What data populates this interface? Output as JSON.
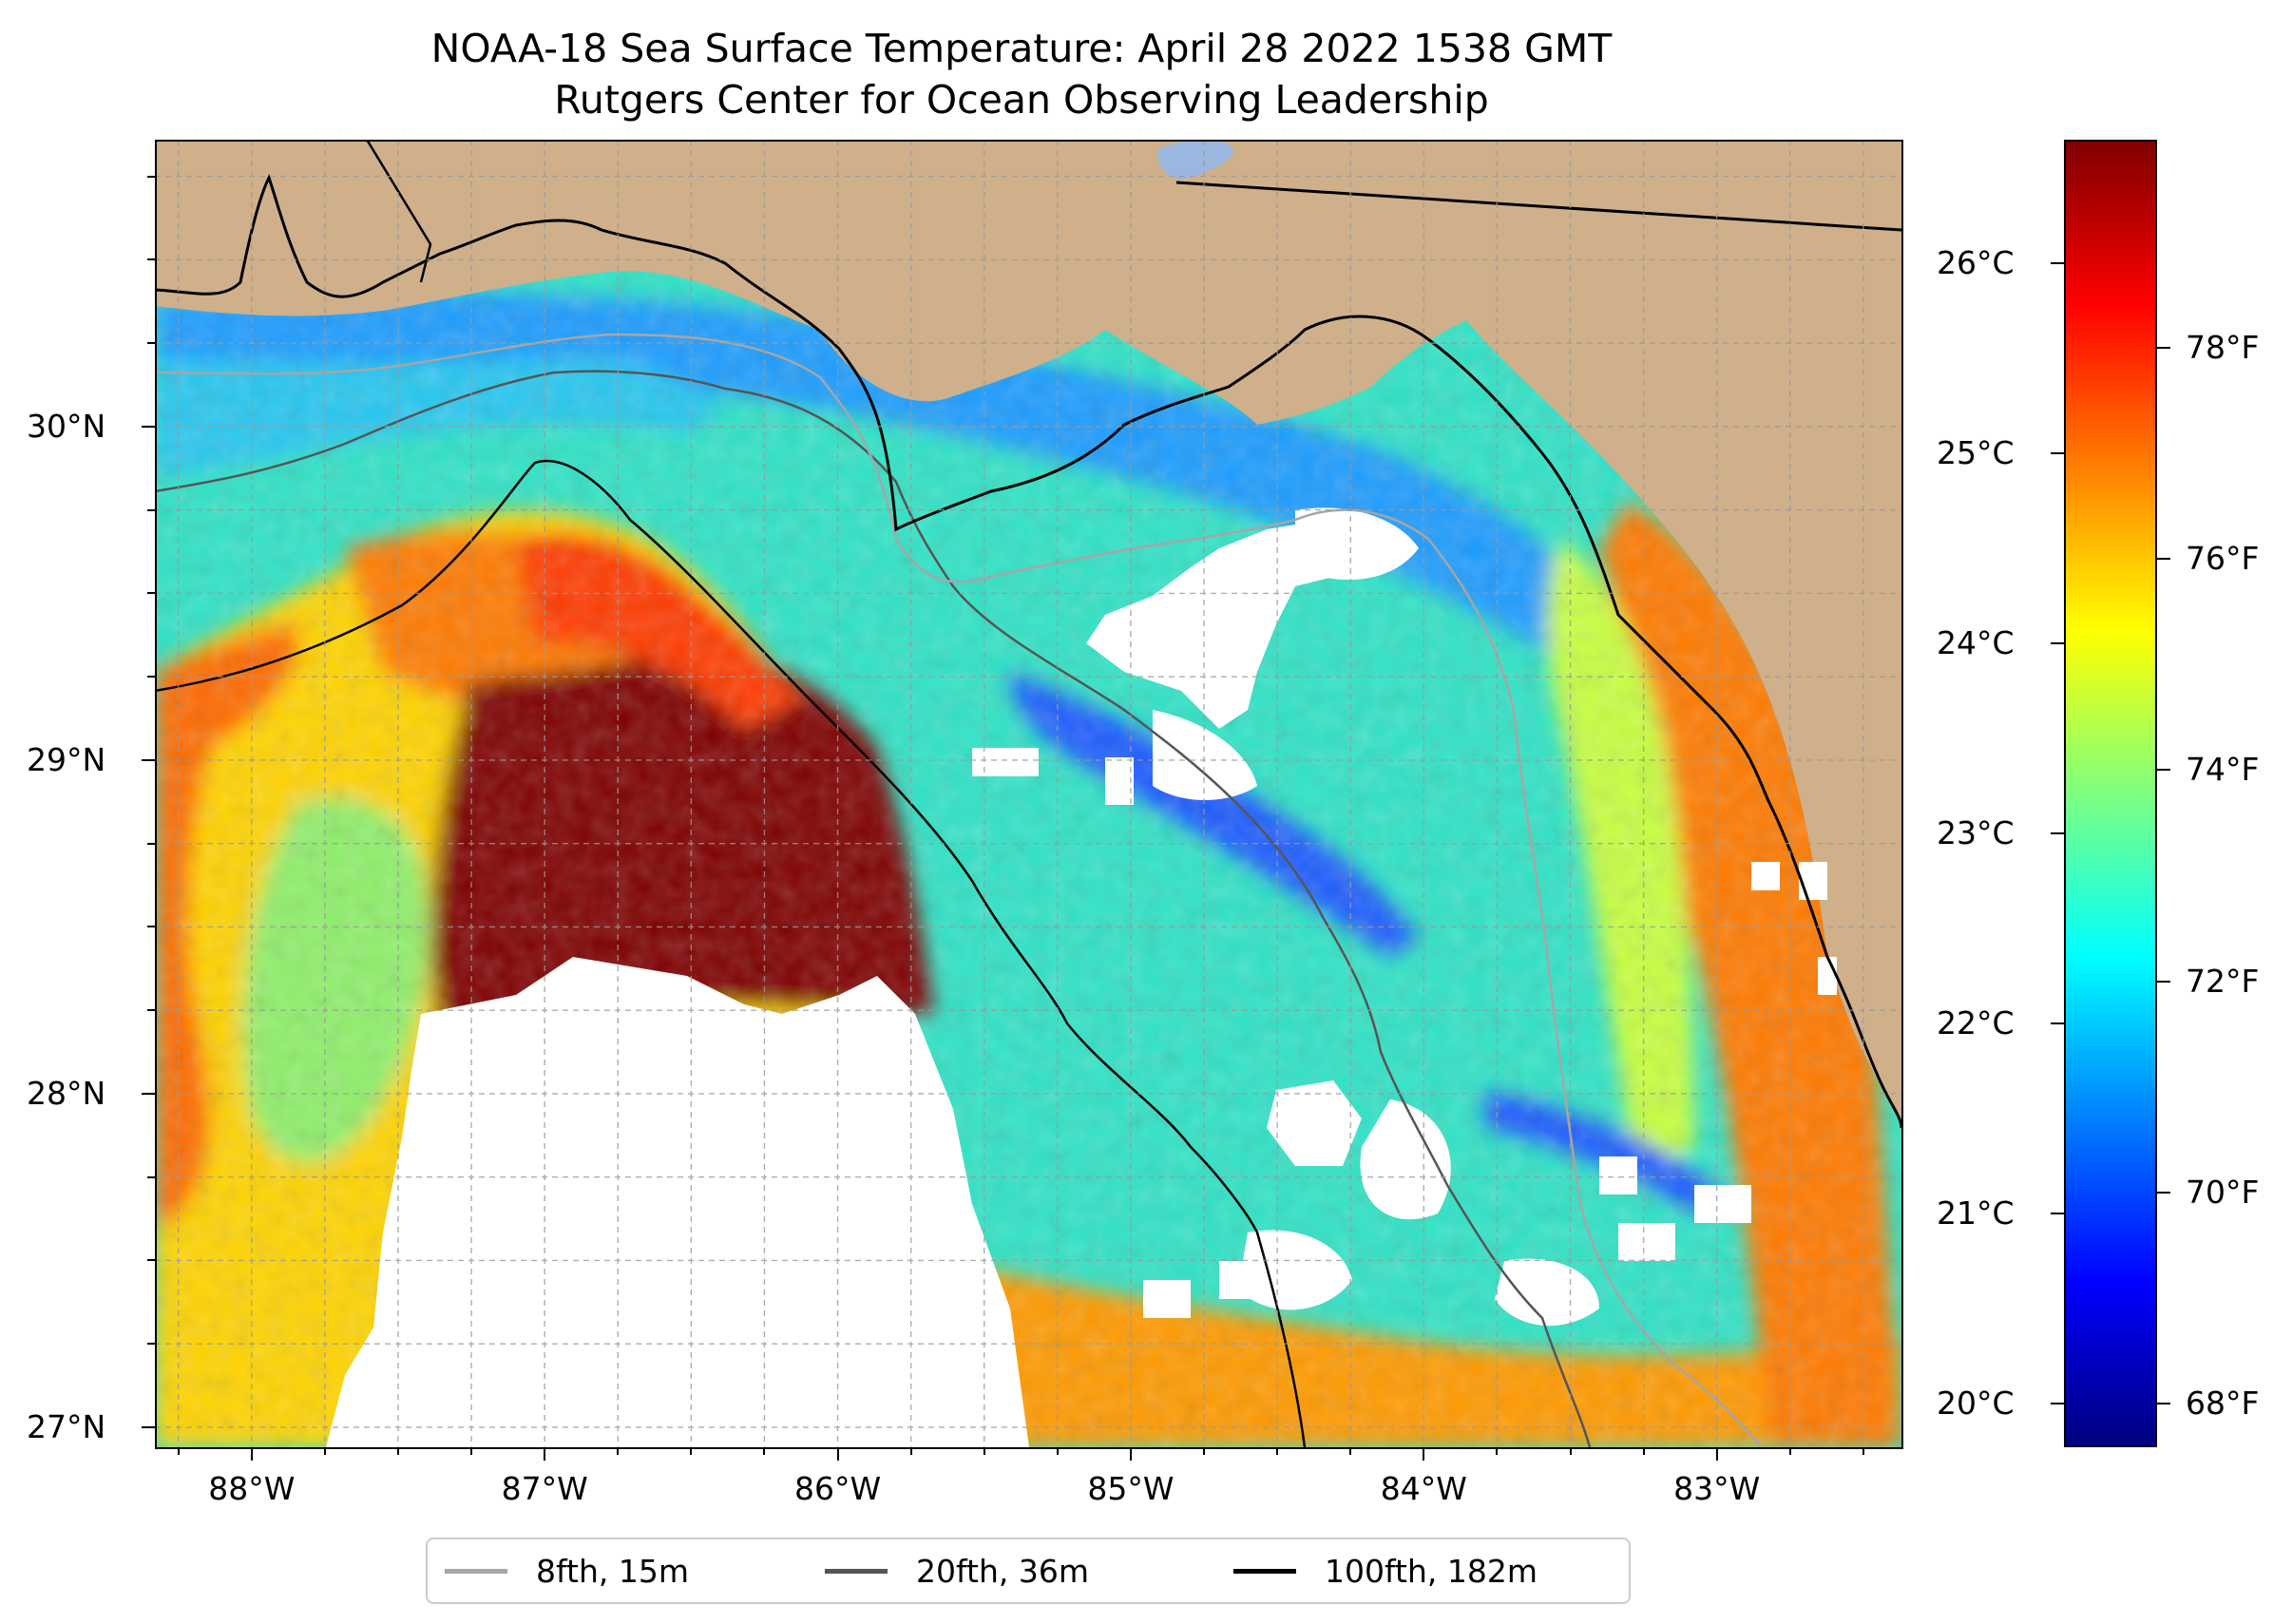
{
  "title": {
    "line1": "NOAA-18 Sea Surface Temperature: April 28 2022 1538 GMT",
    "line2": "Rutgers Center for Ocean Observing Leadership"
  },
  "map": {
    "lon_range": [
      -88.33,
      -82.37
    ],
    "lat_range": [
      26.94,
      30.86
    ],
    "x_ticks": [
      {
        "value": -88,
        "label": "88°W"
      },
      {
        "value": -87,
        "label": "87°W"
      },
      {
        "value": -86,
        "label": "86°W"
      },
      {
        "value": -85,
        "label": "85°W"
      },
      {
        "value": -84,
        "label": "84°W"
      },
      {
        "value": -83,
        "label": "83°W"
      }
    ],
    "y_ticks": [
      {
        "value": 27,
        "label": "27°N"
      },
      {
        "value": 28,
        "label": "28°N"
      },
      {
        "value": 29,
        "label": "29°N"
      },
      {
        "value": 30,
        "label": "30°N"
      }
    ],
    "grid": true,
    "colors": {
      "land": "#cfb08a",
      "nodata": "#ffffff",
      "contour_8fth": "#a6a6a6",
      "contour_20fth": "#555555",
      "contour_100fth": "#000000",
      "lake": "#9bb7e0"
    }
  },
  "colorbar": {
    "colormap": "jet",
    "celsius_range": [
      19.77,
      26.65
    ],
    "celsius_ticks": [
      {
        "value": 20,
        "label": "20°C"
      },
      {
        "value": 21,
        "label": "21°C"
      },
      {
        "value": 22,
        "label": "22°C"
      },
      {
        "value": 23,
        "label": "23°C"
      },
      {
        "value": 24,
        "label": "24°C"
      },
      {
        "value": 25,
        "label": "25°C"
      },
      {
        "value": 26,
        "label": "26°C"
      }
    ],
    "fahrenheit_ticks": [
      {
        "value": 68,
        "label": "68°F"
      },
      {
        "value": 70,
        "label": "70°F"
      },
      {
        "value": 72,
        "label": "72°F"
      },
      {
        "value": 74,
        "label": "74°F"
      },
      {
        "value": 76,
        "label": "76°F"
      },
      {
        "value": 78,
        "label": "78°F"
      }
    ]
  },
  "legend": {
    "placement": "bottom-center",
    "entries": [
      {
        "label": "8fth, 15m",
        "color": "#a6a6a6"
      },
      {
        "label": "20fth, 36m",
        "color": "#555555"
      },
      {
        "label": "100fth, 182m",
        "color": "#000000"
      }
    ]
  }
}
